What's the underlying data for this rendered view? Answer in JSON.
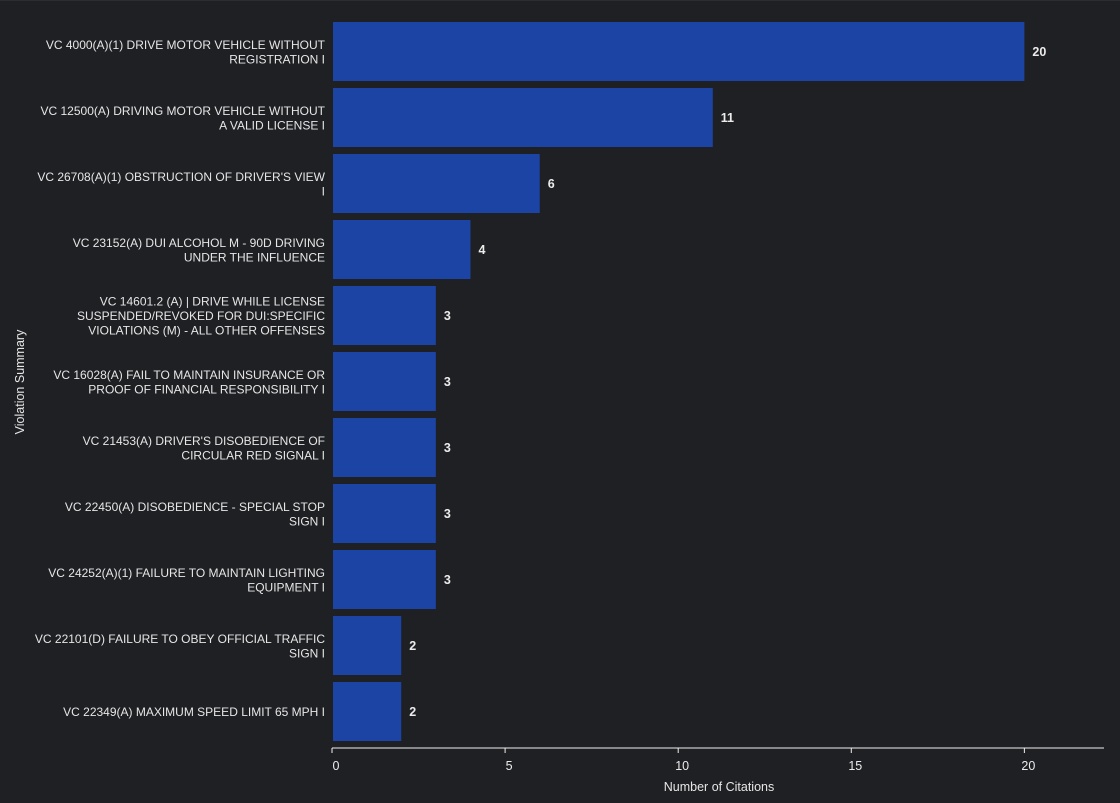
{
  "chart_data": {
    "type": "bar",
    "orientation": "horizontal",
    "title": "",
    "xlabel": "Number of Citations",
    "ylabel": "Violation Summary",
    "xlim": [
      0,
      22.3
    ],
    "xticks": [
      0,
      5,
      10,
      15,
      20
    ],
    "grid": false,
    "legend": "none",
    "bar_color": "#1c44a4",
    "background_color": "#1f2023",
    "text_color": "#e6e6e6",
    "categories": [
      [
        "VC 4000(A)(1) DRIVE MOTOR VEHICLE WITHOUT",
        "REGISTRATION I"
      ],
      [
        "VC 12500(A) DRIVING MOTOR VEHICLE WITHOUT",
        "A VALID LICENSE I"
      ],
      [
        "VC 26708(A)(1) OBSTRUCTION OF DRIVER'S VIEW",
        "I"
      ],
      [
        "VC 23152(A) DUI ALCOHOL M - 90D DRIVING",
        "UNDER THE INFLUENCE"
      ],
      [
        "VC 14601.2 (A) | DRIVE WHILE LICENSE",
        "SUSPENDED/REVOKED FOR DUI:SPECIFIC",
        "VIOLATIONS (M) - ALL OTHER OFFENSES"
      ],
      [
        "VC 16028(A) FAIL TO MAINTAIN INSURANCE OR",
        "PROOF OF FINANCIAL RESPONSIBILITY I"
      ],
      [
        "VC 21453(A) DRIVER'S DISOBEDIENCE OF",
        "CIRCULAR RED SIGNAL I"
      ],
      [
        "VC 22450(A) DISOBEDIENCE - SPECIAL STOP",
        "SIGN I"
      ],
      [
        "VC 24252(A)(1) FAILURE TO MAINTAIN LIGHTING",
        "EQUIPMENT I"
      ],
      [
        "VC 22101(D) FAILURE TO OBEY OFFICIAL TRAFFIC",
        "SIGN I"
      ],
      [
        "VC 22349(A) MAXIMUM SPEED LIMIT 65 MPH I"
      ]
    ],
    "values": [
      20,
      11,
      6,
      4,
      3,
      3,
      3,
      3,
      3,
      2,
      2
    ]
  }
}
